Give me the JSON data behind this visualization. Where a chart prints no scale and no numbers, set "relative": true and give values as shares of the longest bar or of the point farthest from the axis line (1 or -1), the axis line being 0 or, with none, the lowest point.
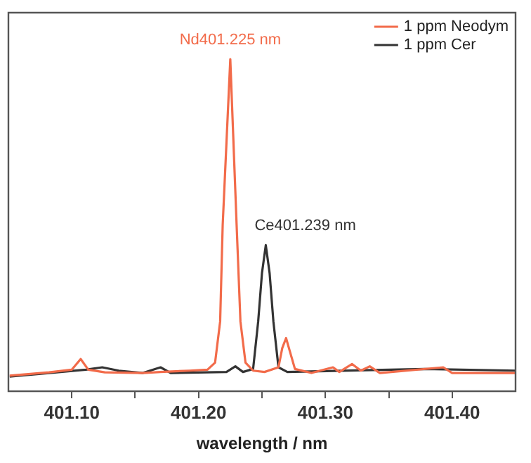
{
  "chart_data": {
    "type": "line",
    "relative": true,
    "xlabel": "wavelength / nm",
    "xlim": [
      401.05,
      401.45
    ],
    "xticks": [
      {
        "value": 401.1,
        "label": "401.10"
      },
      {
        "value": 401.15,
        "label": null
      },
      {
        "value": 401.2,
        "label": "401.20"
      },
      {
        "value": 401.25,
        "label": null
      },
      {
        "value": 401.3,
        "label": "401.30"
      },
      {
        "value": 401.35,
        "label": null
      },
      {
        "value": 401.4,
        "label": "401.40"
      }
    ],
    "legend": "top right",
    "grid": false,
    "marker": "none",
    "line_style": "solid",
    "annotations": [
      {
        "text": "Nd401.225 nm",
        "x": 401.225,
        "y": 1.0
      },
      {
        "text": "Ce401.239 nm",
        "x": 401.253,
        "y": 0.44
      }
    ],
    "series": [
      {
        "name": "1 ppm Neodym",
        "color": "#f26b4a",
        "x": [
          401.051,
          401.082,
          401.1,
          401.107,
          401.113,
          401.126,
          401.156,
          401.17,
          401.193,
          401.207,
          401.213,
          401.217,
          401.219,
          401.225,
          401.23,
          401.233,
          401.237,
          401.243,
          401.252,
          401.263,
          401.266,
          401.269,
          401.272,
          401.276,
          401.289,
          401.306,
          401.311,
          401.321,
          401.328,
          401.335,
          401.343,
          401.393,
          401.4,
          401.45
        ],
        "values": [
          0.047,
          0.057,
          0.065,
          0.097,
          0.065,
          0.057,
          0.055,
          0.058,
          0.062,
          0.065,
          0.086,
          0.21,
          0.5,
          1.0,
          0.5,
          0.21,
          0.086,
          0.062,
          0.058,
          0.072,
          0.13,
          0.16,
          0.12,
          0.067,
          0.055,
          0.072,
          0.058,
          0.082,
          0.062,
          0.075,
          0.055,
          0.072,
          0.055,
          0.055
        ]
      },
      {
        "name": "1 ppm Cer",
        "color": "#333333",
        "x": [
          401.051,
          401.082,
          401.111,
          401.124,
          401.137,
          401.156,
          401.17,
          401.178,
          401.222,
          401.229,
          401.235,
          401.243,
          401.247,
          401.25,
          401.253,
          401.256,
          401.259,
          401.263,
          401.27,
          401.378,
          401.45
        ],
        "values": [
          0.044,
          0.055,
          0.065,
          0.072,
          0.062,
          0.055,
          0.072,
          0.055,
          0.058,
          0.075,
          0.058,
          0.067,
          0.21,
          0.356,
          0.44,
          0.356,
          0.21,
          0.072,
          0.058,
          0.067,
          0.062
        ]
      }
    ]
  }
}
